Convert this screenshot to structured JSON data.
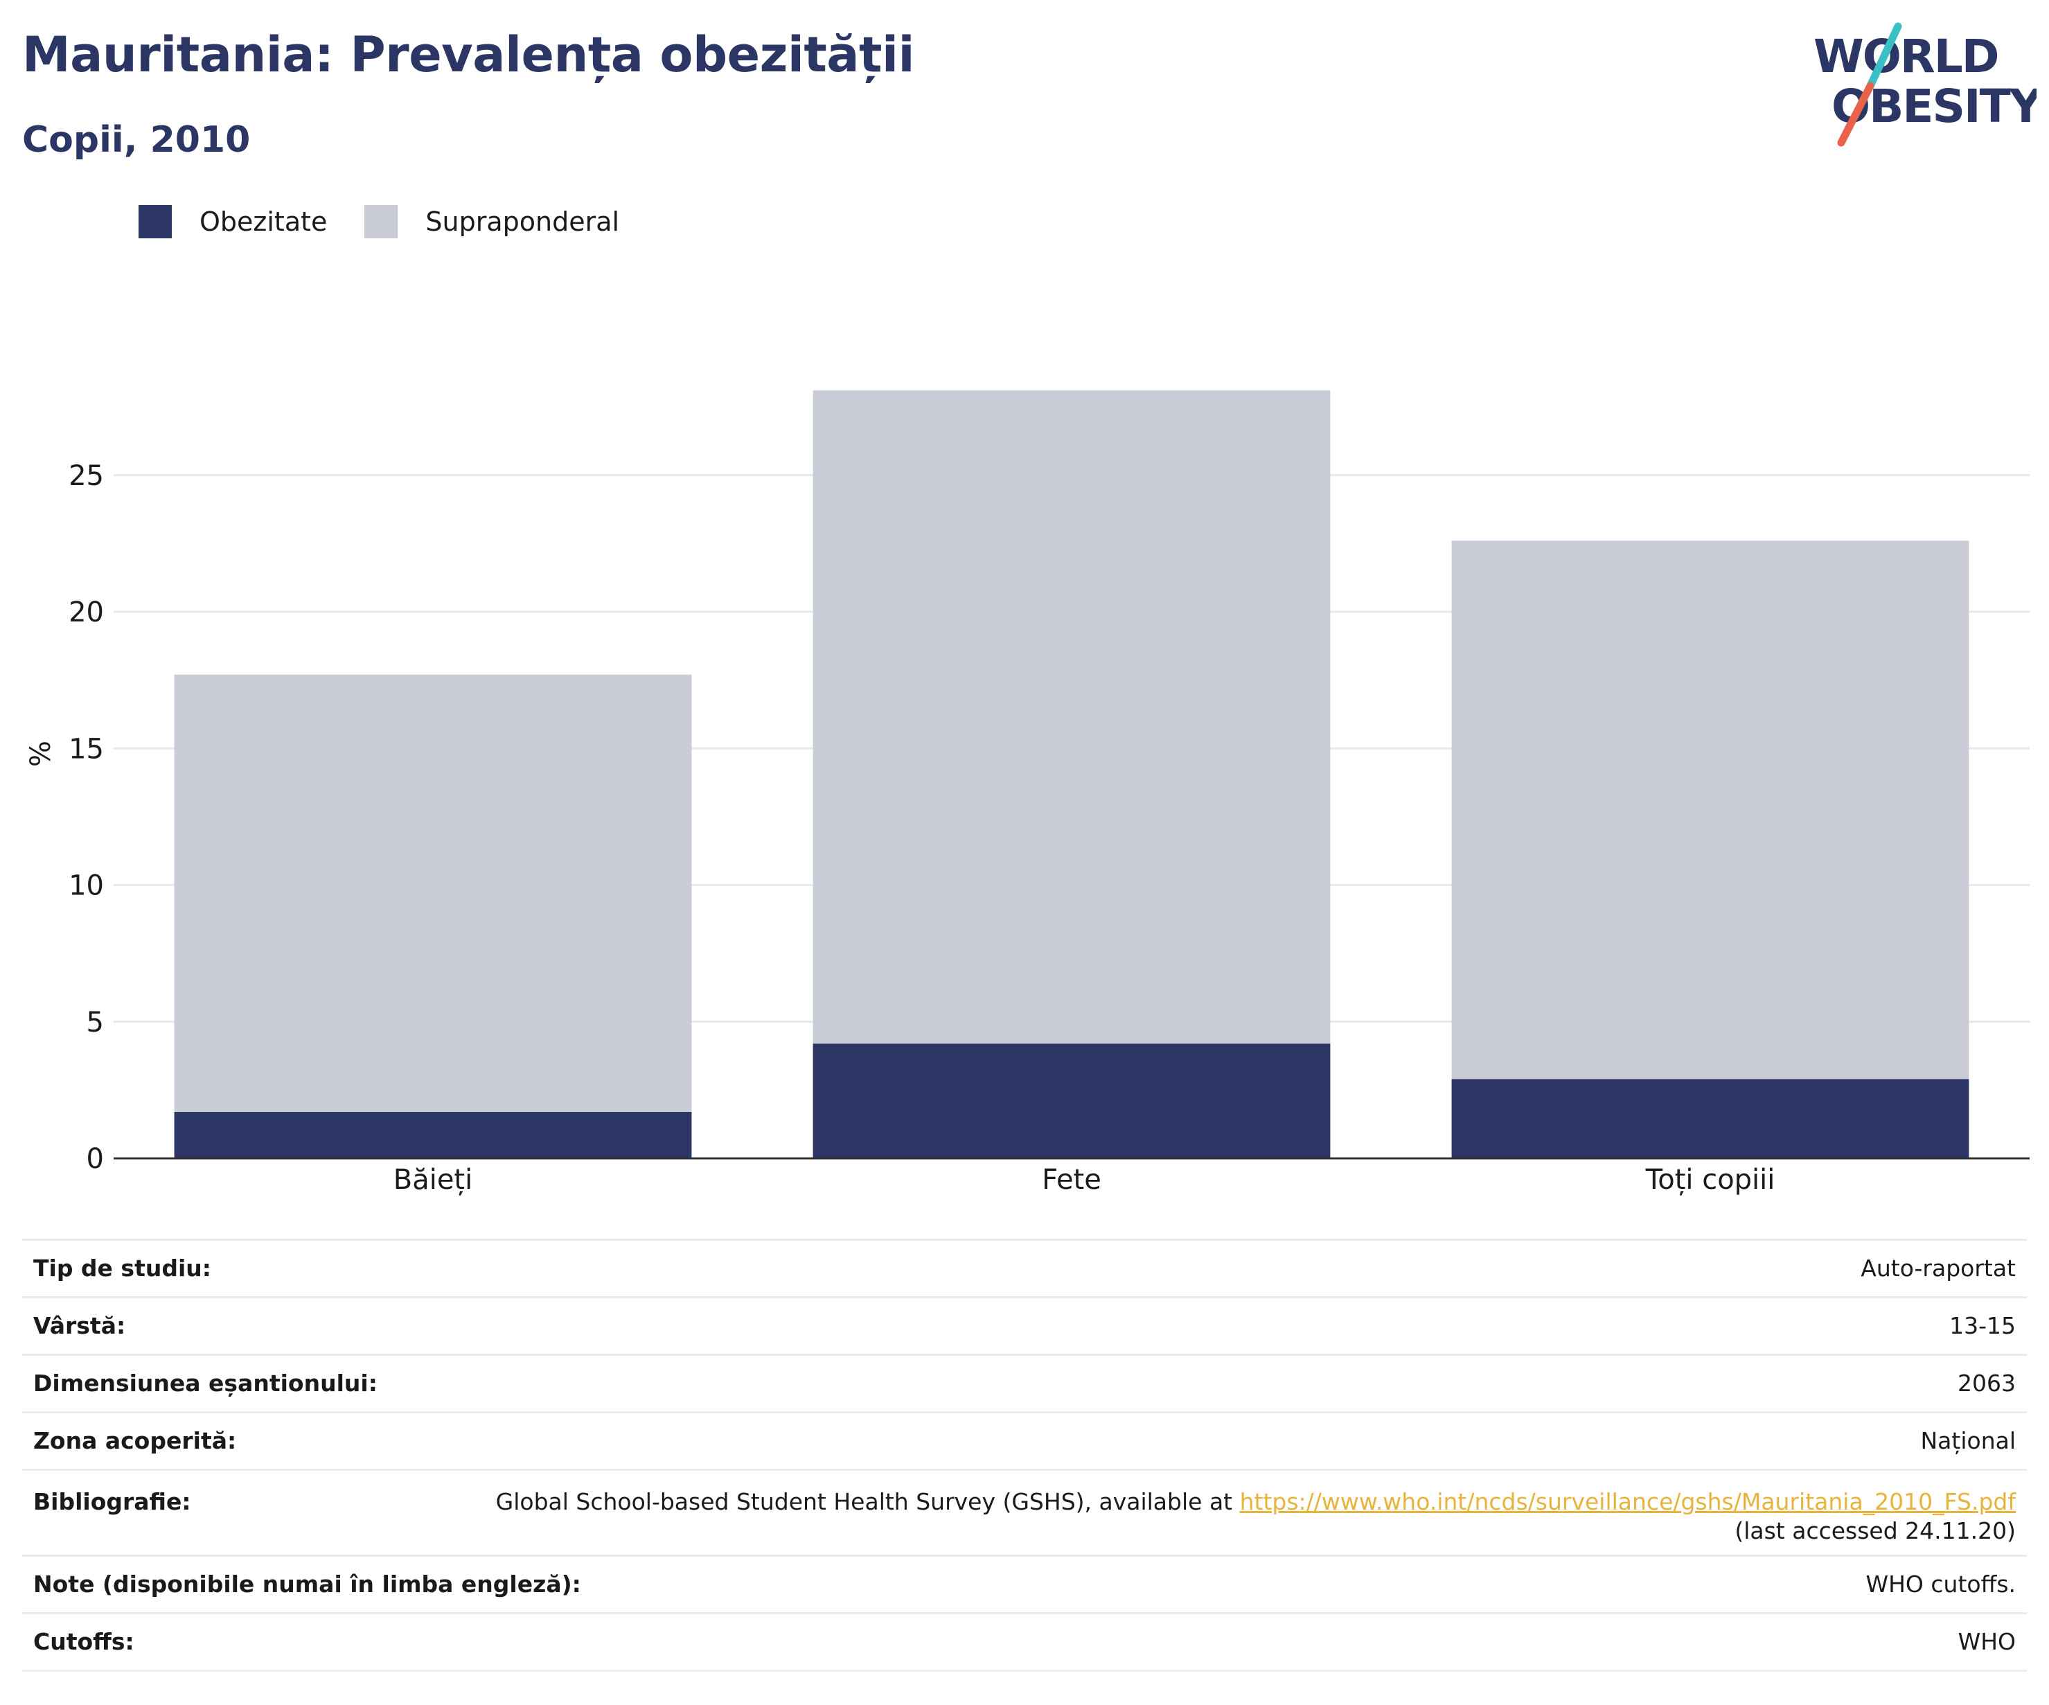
{
  "header": {
    "title": "Mauritania: Prevalența obezității",
    "subtitle": "Copii, 2010"
  },
  "logo": {
    "line1": "WORLD",
    "line2": "OBESITY",
    "colors": {
      "text": "#2b3664",
      "slash_top": "#3bbfc4",
      "slash_bottom": "#e8634a"
    }
  },
  "legend": [
    {
      "label": "Obezitate",
      "color": "#2b3664"
    },
    {
      "label": "Supraponderal",
      "color": "#c9cbd7"
    }
  ],
  "chart_data": {
    "type": "bar",
    "stacked": true,
    "ylabel": "%",
    "xlabel": "",
    "ylim": [
      0,
      30
    ],
    "yticks": [
      0,
      5,
      10,
      15,
      20,
      25
    ],
    "grid": true,
    "legend_position": "top-left",
    "categories": [
      "Băieți",
      "Fete",
      "Toți copiii"
    ],
    "series": [
      {
        "name": "Obezitate",
        "values": [
          1.7,
          4.2,
          2.9
        ],
        "color": "#2b3664"
      },
      {
        "name": "Supraponderal",
        "values": [
          16.0,
          23.9,
          19.7
        ],
        "color": "#c9cbd7"
      }
    ]
  },
  "info": {
    "rows": [
      {
        "label": "Tip de studiu:",
        "value": "Auto-raportat"
      },
      {
        "label": "Vârstă:",
        "value": "13-15"
      },
      {
        "label": "Dimensiunea eșantionului:",
        "value": "2063"
      },
      {
        "label": "Zona acoperită:",
        "value": "Național"
      },
      {
        "label": "Note (disponibile numai în limba engleză):",
        "value": "WHO cutoffs."
      },
      {
        "label": "Cutoffs:",
        "value": "WHO"
      }
    ],
    "bibliography": {
      "label": "Bibliografie:",
      "text_before": "Global School-based Student Health Survey (GSHS), available at ",
      "link": "https://www.who.int/ncds/surveillance/gshs/Mauritania_2010_FS.pdf",
      "text_after": "(last accessed 24.11.20)"
    }
  }
}
